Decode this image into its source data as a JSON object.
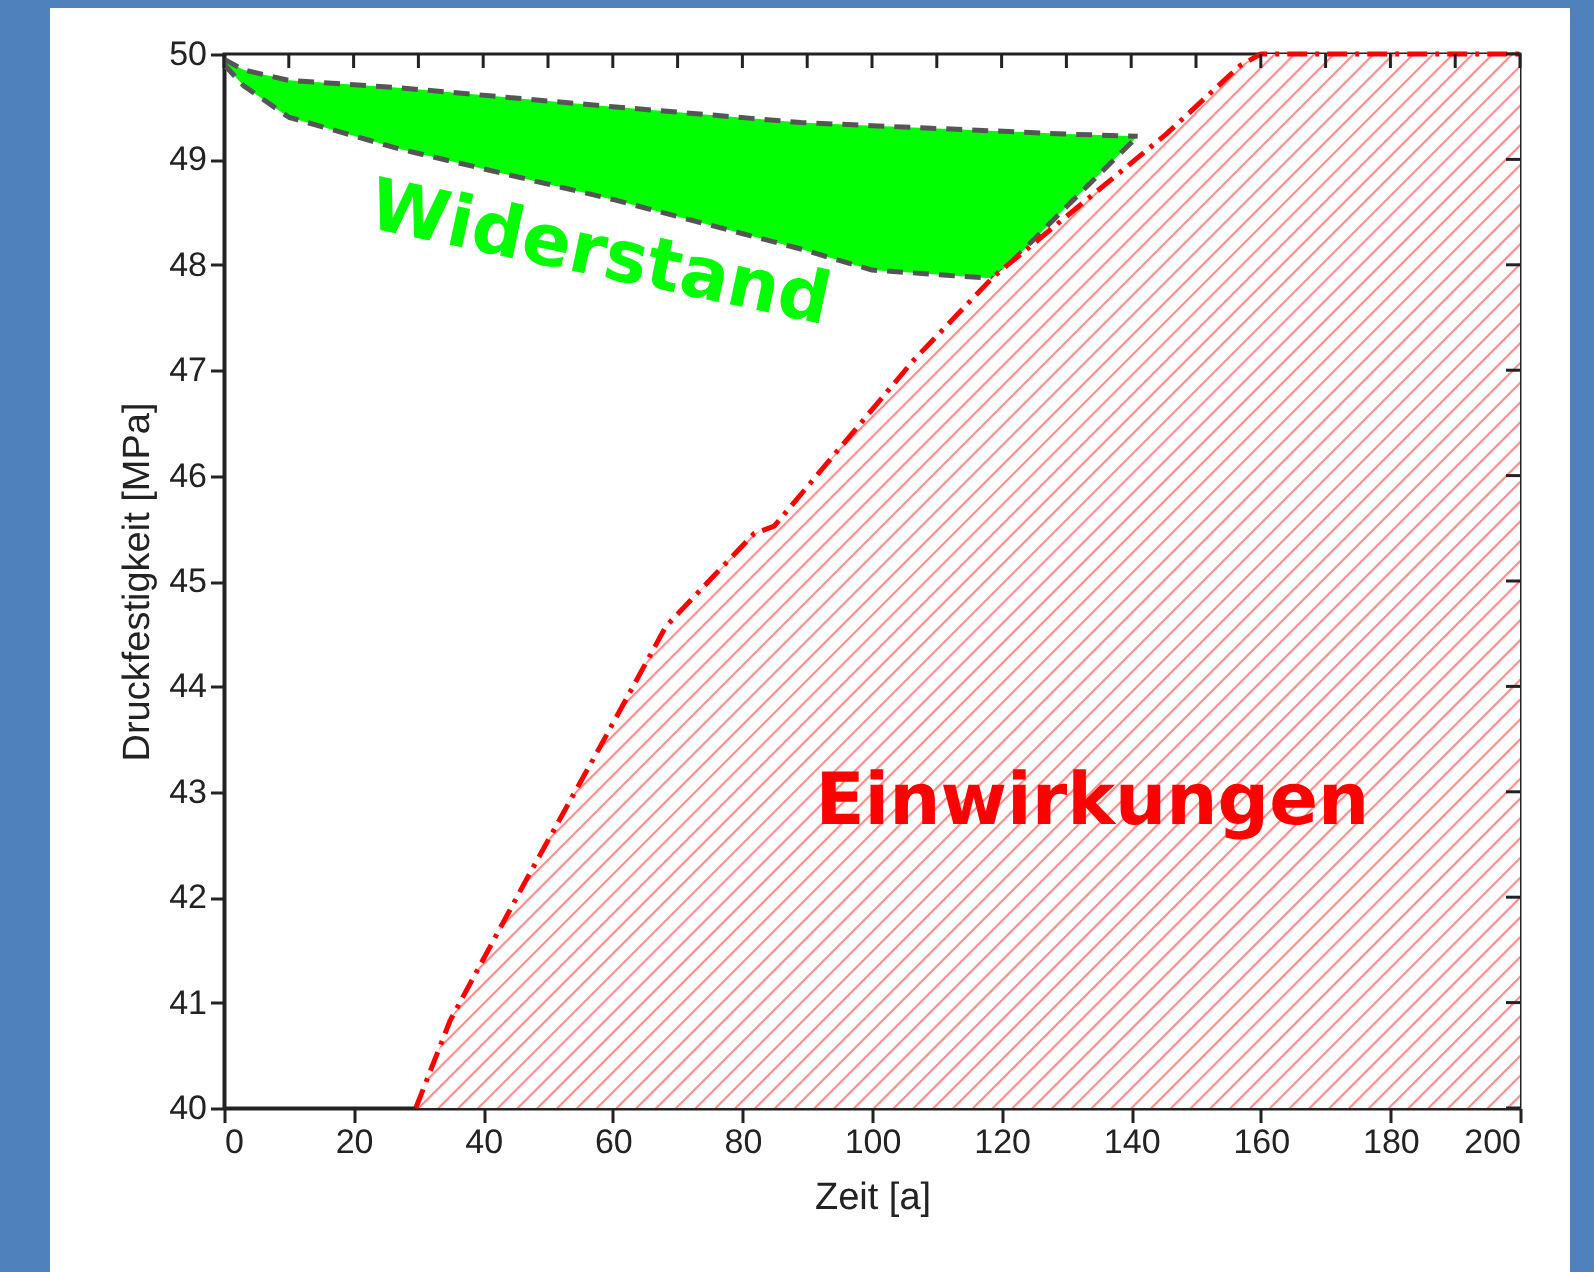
{
  "chart_data": {
    "type": "area",
    "xlabel": "Zeit [a]",
    "ylabel": "Druckfestigkeit [MPa]",
    "xlim": [
      0,
      200
    ],
    "ylim": [
      40,
      50
    ],
    "xticks": [
      0,
      {
        "value": 10,
        "label": null
      },
      20,
      {
        "value": 30,
        "label": null
      },
      40,
      {
        "value": 50,
        "label": null
      },
      60,
      {
        "value": 70,
        "label": null
      },
      80,
      {
        "value": 90,
        "label": null
      },
      100,
      {
        "value": 110,
        "label": null
      },
      120,
      {
        "value": 130,
        "label": null
      },
      140,
      {
        "value": 150,
        "label": null
      },
      160,
      {
        "value": 170,
        "label": null
      },
      180,
      {
        "value": 190,
        "label": null
      },
      200
    ],
    "yticks": [
      40,
      41,
      42,
      43,
      44,
      45,
      46,
      47,
      48,
      49,
      50
    ],
    "line_style": "dashed",
    "series": [
      {
        "name": "Widerstand",
        "color": "#00ff00",
        "x": [
          0,
          3,
          10,
          27,
          60,
          89,
          100,
          119,
          130,
          141
        ],
        "values": [
          49.95,
          49.85,
          49.75,
          49.68,
          49.5,
          49.35,
          49.32,
          49.27,
          49.24,
          49.22
        ]
      },
      {
        "type": "line",
        "color": "#555555",
        "x": [
          0,
          3,
          10,
          27,
          60,
          89,
          100,
          119,
          130,
          141
        ],
        "values": [
          49.9,
          49.7,
          49.4,
          49.1,
          48.62,
          48.15,
          47.95,
          47.87,
          48.55,
          49.22
        ]
      },
      {
        "name": "Einwirkungen",
        "color": "#ff0000",
        "x": [
          29.6,
          34.9,
          46.6,
          58.6,
          68.2,
          81.8,
          84.9,
          106.5,
          118.8,
          145.4,
          156.8,
          160,
          200
        ],
        "values": [
          40,
          40.83,
          42.16,
          43.49,
          44.57,
          45.45,
          45.52,
          47.1,
          47.89,
          49.24,
          49.89,
          50,
          50
        ]
      }
    ]
  }
}
